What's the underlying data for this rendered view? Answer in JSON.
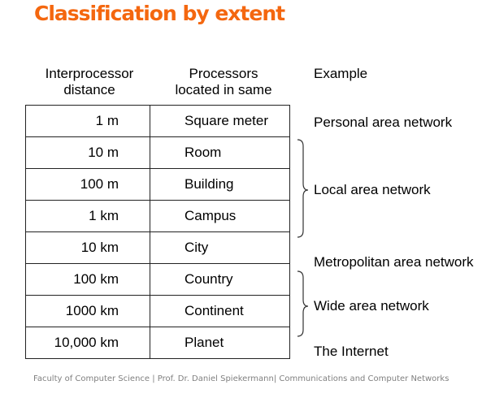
{
  "title": "Classification by extent",
  "headers": {
    "distance": [
      "Interprocessor",
      "distance"
    ],
    "located": [
      "Processors",
      "located in same"
    ],
    "example": "Example"
  },
  "rows": [
    {
      "distance": "1 m",
      "located": "Square meter"
    },
    {
      "distance": "10 m",
      "located": "Room"
    },
    {
      "distance": "100 m",
      "located": "Building"
    },
    {
      "distance": "1 km",
      "located": "Campus"
    },
    {
      "distance": "10 km",
      "located": "City"
    },
    {
      "distance": "100 km",
      "located": "Country"
    },
    {
      "distance": "1000 km",
      "located": "Continent"
    },
    {
      "distance": "10,000 km",
      "located": "Planet"
    }
  ],
  "examples": {
    "pan": "Personal area network",
    "lan": "Local area network",
    "man": "Metropolitan area network",
    "wan": "Wide area network",
    "internet": "The Internet"
  },
  "footer": "Faculty of Computer Science | Prof. Dr. Daniel Spiekermann| Communications and Computer Networks",
  "colors": {
    "title": "#f4670f",
    "footer": "#808080"
  }
}
